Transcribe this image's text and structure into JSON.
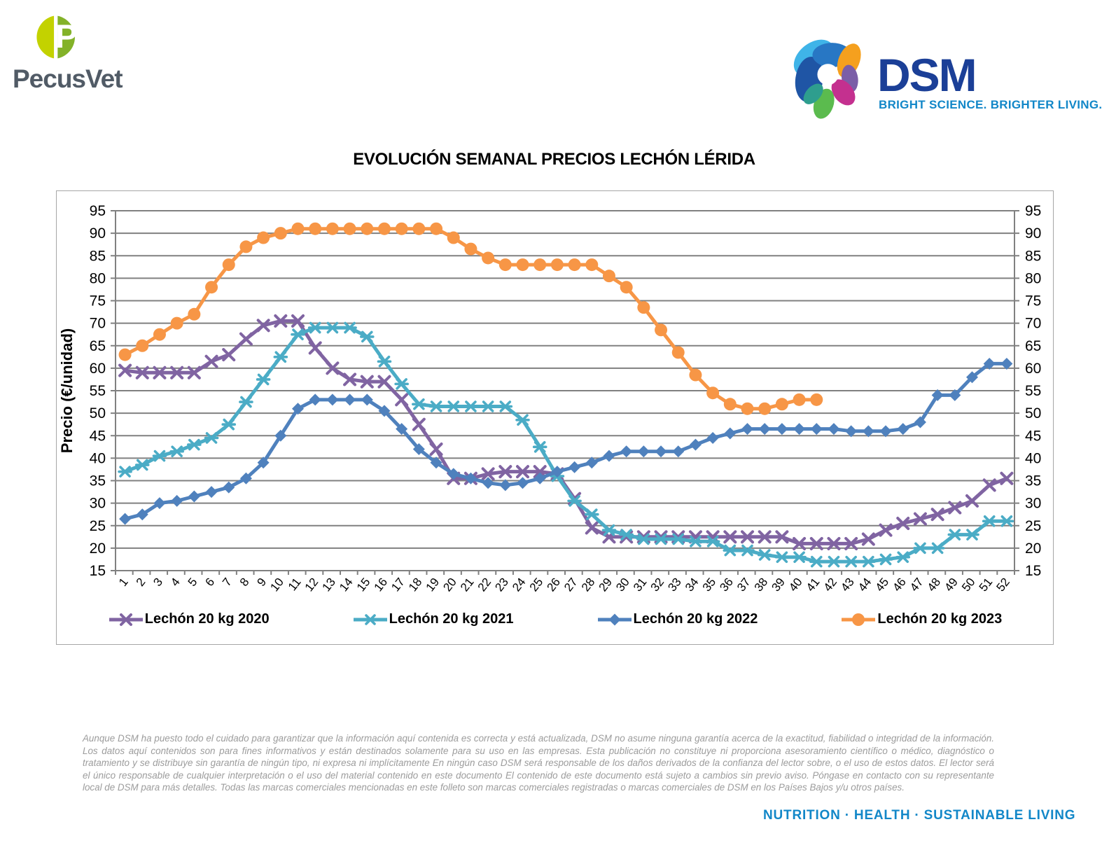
{
  "branding": {
    "pecusvet": {
      "name": "PecusVet",
      "circle_left_color": "#C3D200",
      "circle_right_color": "#83B229",
      "text_color": "#515B66"
    },
    "dsm": {
      "name": "DSM",
      "tagline": "BRIGHT SCIENCE. BRIGHTER LIVING.",
      "name_color": "#1B3F97",
      "tagline_color": "#1287C8"
    }
  },
  "chart_data": {
    "type": "line",
    "title": "EVOLUCIÓN SEMANAL PRECIOS LECHÓN LÉRIDA",
    "xlabel": "",
    "ylabel": "Precio (€/unidad)",
    "x": [
      1,
      2,
      3,
      4,
      5,
      6,
      7,
      8,
      9,
      10,
      11,
      12,
      13,
      14,
      15,
      16,
      17,
      18,
      19,
      20,
      21,
      22,
      23,
      24,
      25,
      26,
      27,
      28,
      29,
      30,
      31,
      32,
      33,
      34,
      35,
      36,
      37,
      38,
      39,
      40,
      41,
      42,
      43,
      44,
      45,
      46,
      47,
      48,
      49,
      50,
      51,
      52
    ],
    "ylim": [
      15,
      95
    ],
    "ytick_step": 5,
    "grid": true,
    "legend_position": "bottom",
    "grid_color": "#808080",
    "series": [
      {
        "name": "Lechón 20 kg 2020",
        "color": "#8064A2",
        "marker": "x",
        "values": [
          59.5,
          59,
          59,
          59,
          59,
          61.5,
          63,
          66.5,
          69.5,
          70.5,
          70.5,
          64.5,
          60,
          57.5,
          57,
          57,
          53,
          47.5,
          42,
          35.5,
          35.5,
          36.5,
          37,
          37,
          37,
          36.5,
          31,
          24.5,
          22.5,
          22.5,
          22.5,
          22.5,
          22.5,
          22.5,
          22.5,
          22.5,
          22.5,
          22.5,
          22.5,
          21,
          21,
          21,
          21,
          22,
          24,
          25.5,
          26.5,
          27.5,
          29,
          30.5,
          34,
          35.5
        ]
      },
      {
        "name": "Lechón 20 kg 2021",
        "color": "#4BACC6",
        "marker": "asterisk",
        "values": [
          37,
          38.5,
          40.5,
          41.5,
          43,
          44.5,
          47.5,
          52.5,
          57.5,
          62.5,
          67.5,
          69,
          69,
          69,
          67,
          61.5,
          56.5,
          52,
          51.5,
          51.5,
          51.5,
          51.5,
          51.5,
          48.5,
          42.5,
          36,
          30.5,
          27.5,
          24,
          23,
          22,
          22,
          22,
          21.5,
          21.5,
          19.5,
          19.5,
          18.5,
          18,
          18,
          17,
          17,
          17,
          17,
          17.5,
          18,
          20,
          20,
          23,
          23,
          26,
          26
        ]
      },
      {
        "name": "Lechón 20 kg 2022",
        "color": "#4F81BD",
        "marker": "diamond",
        "values": [
          26.5,
          27.5,
          30,
          30.5,
          31.5,
          32.5,
          33.5,
          35.5,
          39,
          45,
          51,
          53,
          53,
          53,
          53,
          50.5,
          46.5,
          42,
          39,
          36.5,
          35.5,
          34.5,
          34,
          34.5,
          35.5,
          37,
          38,
          39,
          40.5,
          41.5,
          41.5,
          41.5,
          41.5,
          43,
          44.5,
          45.5,
          46.5,
          46.5,
          46.5,
          46.5,
          46.5,
          46.5,
          46,
          46,
          46,
          46.5,
          48,
          54,
          54,
          58,
          61,
          61
        ]
      },
      {
        "name": "Lechón 20 kg 2023",
        "color": "#F79646",
        "marker": "circle",
        "values": [
          63,
          65,
          67.5,
          70,
          72,
          78,
          83,
          87,
          89,
          90,
          91,
          91,
          91,
          91,
          91,
          91,
          91,
          91,
          91,
          89,
          86.5,
          84.5,
          83,
          83,
          83,
          83,
          83,
          83,
          80.5,
          78,
          73.5,
          68.5,
          63.5,
          58.5,
          54.5,
          52,
          51,
          51,
          52,
          53,
          53,
          null,
          null,
          null,
          null,
          null,
          null,
          null,
          null,
          null,
          null,
          null
        ]
      }
    ]
  },
  "footer": {
    "disclaimer": "Aunque DSM ha puesto todo el cuidado para garantizar que la información aquí contenida es correcta y está actualizada, DSM no asume ninguna garantía acerca de la exactitud, fiabilidad o integridad de la información. Los datos aquí contenidos son para fines informativos y están destinados solamente para su uso en las empresas. Esta publicación no constituye ni proporciona asesoramiento científico o médico, diagnóstico o tratamiento y se distribuye sin garantía de ningún tipo, ni expresa ni implícitamente En ningún caso DSM será responsable de los daños derivados de la confianza del lector sobre, o el uso de estos datos. El lector será el único responsable de cualquier interpretación o el uso del material contenido en este documento El contenido de este documento está sujeto a cambios sin previo aviso. Póngase en contacto con su representante local de DSM para más detalles. Todas las marcas comerciales mencionadas en este folleto son marcas comerciales registradas o marcas comerciales de DSM en los Países Bajos y/u otros países.",
    "tagline": "NUTRITION  ·  HEALTH  ·  SUSTAINABLE LIVING"
  }
}
